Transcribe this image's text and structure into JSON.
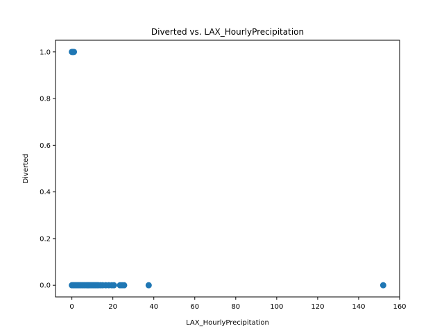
{
  "chart_data": {
    "type": "scatter",
    "title": "Diverted vs. LAX_HourlyPrecipitation",
    "xlabel": "LAX_HourlyPrecipitation",
    "ylabel": "Diverted",
    "xlim": [
      -8,
      160
    ],
    "ylim": [
      -0.05,
      1.05
    ],
    "xticks": [
      0,
      20,
      40,
      60,
      80,
      100,
      120,
      140,
      160
    ],
    "yticks": [
      0.0,
      0.2,
      0.4,
      0.6,
      0.8,
      1.0
    ],
    "xtick_labels": [
      "0",
      "20",
      "40",
      "60",
      "80",
      "100",
      "120",
      "140",
      "160"
    ],
    "ytick_labels": [
      "0.0",
      "0.2",
      "0.4",
      "0.6",
      "0.8",
      "1.0"
    ],
    "grid": false,
    "point_color": "#1f77b4",
    "points": [
      {
        "x": 0,
        "y": 1
      },
      {
        "x": 0.3,
        "y": 1
      },
      {
        "x": 0.6,
        "y": 1
      },
      {
        "x": 1.0,
        "y": 1
      },
      {
        "x": 0,
        "y": 0
      },
      {
        "x": 0.5,
        "y": 0
      },
      {
        "x": 1,
        "y": 0
      },
      {
        "x": 1.5,
        "y": 0
      },
      {
        "x": 2,
        "y": 0
      },
      {
        "x": 2.5,
        "y": 0
      },
      {
        "x": 3,
        "y": 0
      },
      {
        "x": 3.5,
        "y": 0
      },
      {
        "x": 4,
        "y": 0
      },
      {
        "x": 4.5,
        "y": 0
      },
      {
        "x": 5,
        "y": 0
      },
      {
        "x": 5.5,
        "y": 0
      },
      {
        "x": 6,
        "y": 0
      },
      {
        "x": 6.5,
        "y": 0
      },
      {
        "x": 7,
        "y": 0
      },
      {
        "x": 7.5,
        "y": 0
      },
      {
        "x": 8,
        "y": 0
      },
      {
        "x": 8.5,
        "y": 0
      },
      {
        "x": 9,
        "y": 0
      },
      {
        "x": 9.5,
        "y": 0
      },
      {
        "x": 10,
        "y": 0
      },
      {
        "x": 10.5,
        "y": 0
      },
      {
        "x": 11,
        "y": 0
      },
      {
        "x": 11.5,
        "y": 0
      },
      {
        "x": 12,
        "y": 0
      },
      {
        "x": 12.5,
        "y": 0
      },
      {
        "x": 13,
        "y": 0
      },
      {
        "x": 14,
        "y": 0
      },
      {
        "x": 15,
        "y": 0
      },
      {
        "x": 16.5,
        "y": 0
      },
      {
        "x": 18,
        "y": 0
      },
      {
        "x": 19.5,
        "y": 0
      },
      {
        "x": 20.5,
        "y": 0
      },
      {
        "x": 23.5,
        "y": 0
      },
      {
        "x": 24.5,
        "y": 0
      },
      {
        "x": 25.5,
        "y": 0
      },
      {
        "x": 37.5,
        "y": 0
      },
      {
        "x": 152,
        "y": 0
      }
    ]
  }
}
